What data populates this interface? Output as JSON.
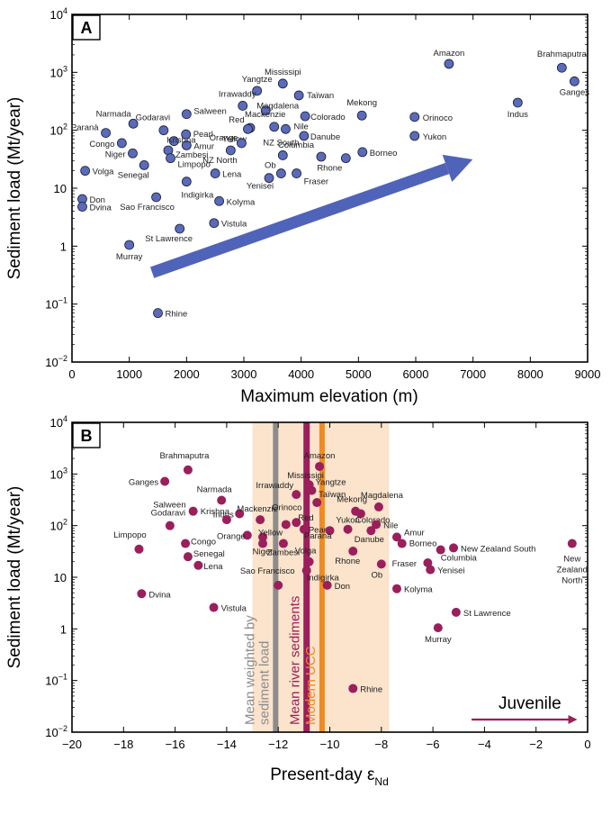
{
  "chart_data": [
    {
      "type": "scatter",
      "panel_label": "A",
      "xlabel": "Maximum elevation (m)",
      "ylabel": "Sediment load (Mt/year)",
      "xlim": [
        0,
        9000
      ],
      "ylim": [
        0.01,
        10000
      ],
      "yscale": "log",
      "xticks": [
        "0",
        "1000",
        "2000",
        "3000",
        "4000",
        "5000",
        "6000",
        "7000",
        "8000",
        "9000"
      ],
      "marker_color": "#5a6bb8",
      "arrow_color": "#4f63b8",
      "points": [
        {
          "name": "Amazon",
          "x": 6580,
          "y": 1400
        },
        {
          "name": "Brahmaputra",
          "x": 8550,
          "y": 1200
        },
        {
          "name": "Ganges",
          "x": 8770,
          "y": 700
        },
        {
          "name": "Indus",
          "x": 7780,
          "y": 300
        },
        {
          "name": "Mississipi",
          "x": 3680,
          "y": 640
        },
        {
          "name": "Yangtze",
          "x": 3230,
          "y": 480
        },
        {
          "name": "Taïwan",
          "x": 3960,
          "y": 400
        },
        {
          "name": "Irrawaddy",
          "x": 2980,
          "y": 265
        },
        {
          "name": "Magdalena",
          "x": 3380,
          "y": 220
        },
        {
          "name": "Red",
          "x": 3110,
          "y": 110
        },
        {
          "name": "Mackenzie",
          "x": 3530,
          "y": 115
        },
        {
          "name": "Nile",
          "x": 3730,
          "y": 105
        },
        {
          "name": "Colorado",
          "x": 4070,
          "y": 175
        },
        {
          "name": "Mekong",
          "x": 5060,
          "y": 180
        },
        {
          "name": "Orinoco",
          "x": 5980,
          "y": 170
        },
        {
          "name": "Yukon",
          "x": 5980,
          "y": 80
        },
        {
          "name": "Danube",
          "x": 4050,
          "y": 80
        },
        {
          "name": "Columbia",
          "x": 4350,
          "y": 35
        },
        {
          "name": "Borneo",
          "x": 5070,
          "y": 42
        },
        {
          "name": "Rhone",
          "x": 4780,
          "y": 33
        },
        {
          "name": "Ob",
          "x": 3650,
          "y": 18
        },
        {
          "name": "Fraser",
          "x": 3920,
          "y": 18
        },
        {
          "name": "NZ South",
          "x": 3680,
          "y": 37
        },
        {
          "name": "Yellow",
          "x": 3070,
          "y": 105
        },
        {
          "name": "Orange",
          "x": 2960,
          "y": 60
        },
        {
          "name": "NZ North",
          "x": 2770,
          "y": 45
        },
        {
          "name": "Yenisei",
          "x": 3440,
          "y": 15
        },
        {
          "name": "Lena",
          "x": 2500,
          "y": 18
        },
        {
          "name": "Kolyma",
          "x": 2570,
          "y": 6
        },
        {
          "name": "Vistula",
          "x": 2480,
          "y": 2.5
        },
        {
          "name": "St Lawrence",
          "x": 1880,
          "y": 2
        },
        {
          "name": "Salween",
          "x": 2000,
          "y": 190
        },
        {
          "name": "Pearl",
          "x": 1990,
          "y": 85
        },
        {
          "name": "Amur",
          "x": 2000,
          "y": 55
        },
        {
          "name": "Zambesi",
          "x": 1680,
          "y": 45
        },
        {
          "name": "Limpopo",
          "x": 1720,
          "y": 33
        },
        {
          "name": "Indigirka",
          "x": 2000,
          "y": 13
        },
        {
          "name": "Narmada",
          "x": 1070,
          "y": 130
        },
        {
          "name": "Godaravi",
          "x": 1600,
          "y": 100
        },
        {
          "name": "Krishna",
          "x": 1780,
          "y": 65
        },
        {
          "name": "Paranà",
          "x": 590,
          "y": 90
        },
        {
          "name": "Congo",
          "x": 870,
          "y": 60
        },
        {
          "name": "Niger",
          "x": 1060,
          "y": 40
        },
        {
          "name": "Senegal",
          "x": 1260,
          "y": 25
        },
        {
          "name": "Volga",
          "x": 230,
          "y": 20
        },
        {
          "name": "Sao Francisco",
          "x": 1470,
          "y": 7
        },
        {
          "name": "Don",
          "x": 180,
          "y": 6.5
        },
        {
          "name": "Dvina",
          "x": 180,
          "y": 4.8
        },
        {
          "name": "Murray",
          "x": 1000,
          "y": 1.05
        },
        {
          "name": "Rhine",
          "x": 1500,
          "y": 0.07
        }
      ]
    },
    {
      "type": "scatter",
      "panel_label": "B",
      "xlabel": "Present-day ε",
      "xlabel_sub": "Nd",
      "ylabel": "Sediment load (Mt/year)",
      "xlim": [
        -20,
        0
      ],
      "ylim": [
        0.01,
        10000
      ],
      "yscale": "log",
      "xticks": [
        "−20",
        "−18",
        "−16",
        "−14",
        "−12",
        "−10",
        "−8",
        "−6",
        "−4",
        "−2",
        "0"
      ],
      "marker_color": "#9a1f5c",
      "juvenile_label": "Juvenile",
      "juvenile_color": "#9a1f5c",
      "bands": [
        {
          "label": "Mean weighted by sediment load",
          "x": -12.1,
          "color": "#8c8c8c"
        },
        {
          "label": "Mean river sediments",
          "x": -10.9,
          "color": "#9a1f5c"
        },
        {
          "label": "Modern UCC",
          "x": -10.3,
          "color": "#f08a24"
        }
      ],
      "shade_range": [
        -13,
        -7.7
      ],
      "shade_color": "#fbe3cc",
      "points": [
        {
          "name": "Brahmaputra",
          "x": -15.5,
          "y": 1200
        },
        {
          "name": "Ganges",
          "x": -16.4,
          "y": 720
        },
        {
          "name": "Amazon",
          "x": -10.4,
          "y": 1400
        },
        {
          "name": "Mississipi",
          "x": -10.8,
          "y": 620
        },
        {
          "name": "Yangtze",
          "x": -10.7,
          "y": 480
        },
        {
          "name": "Irrawaddy",
          "x": -11.3,
          "y": 400
        },
        {
          "name": "Taïwan",
          "x": -10.5,
          "y": 280
        },
        {
          "name": "Narmada",
          "x": -14.2,
          "y": 310
        },
        {
          "name": "Salween",
          "x": -15.3,
          "y": 190
        },
        {
          "name": "Magdalena",
          "x": -8.1,
          "y": 230
        },
        {
          "name": "Mekong",
          "x": -9.0,
          "y": 190
        },
        {
          "name": "Colorado",
          "x": -8.8,
          "y": 170
        },
        {
          "name": "Indus",
          "x": -13.5,
          "y": 170
        },
        {
          "name": "Krishna",
          "x": -14.0,
          "y": 130
        },
        {
          "name": "Mackenzie",
          "x": -12.7,
          "y": 130
        },
        {
          "name": "Red",
          "x": -11.3,
          "y": 115
        },
        {
          "name": "Orinoco",
          "x": -11.7,
          "y": 105
        },
        {
          "name": "Nile",
          "x": -8.2,
          "y": 105
        },
        {
          "name": "Godaravi",
          "x": -16.2,
          "y": 100
        },
        {
          "name": "Yukon",
          "x": -9.3,
          "y": 85
        },
        {
          "name": "Pearl",
          "x": -11.0,
          "y": 85
        },
        {
          "name": "Paranà",
          "x": -10.0,
          "y": 80
        },
        {
          "name": "Danube",
          "x": -8.4,
          "y": 80
        },
        {
          "name": "Orange",
          "x": -13.2,
          "y": 65
        },
        {
          "name": "Yellow",
          "x": -12.6,
          "y": 60
        },
        {
          "name": "Amur",
          "x": -7.4,
          "y": 60
        },
        {
          "name": "Borneo",
          "x": -7.2,
          "y": 45
        },
        {
          "name": "Congo",
          "x": -15.6,
          "y": 45
        },
        {
          "name": "Niger",
          "x": -12.6,
          "y": 45
        },
        {
          "name": "Zambesi",
          "x": -11.8,
          "y": 45
        },
        {
          "name": "Limpopo",
          "x": -17.4,
          "y": 35
        },
        {
          "name": "Rhone",
          "x": -9.1,
          "y": 32
        },
        {
          "name": "New Zealand South",
          "x": -5.2,
          "y": 37
        },
        {
          "name": "Columbia",
          "x": -5.7,
          "y": 34
        },
        {
          "name": "New Zealand North",
          "x": -0.6,
          "y": 45
        },
        {
          "name": "Senegal",
          "x": -15.5,
          "y": 25
        },
        {
          "name": "Volga",
          "x": -10.8,
          "y": 20
        },
        {
          "name": "Fraser",
          "x": -6.2,
          "y": 19
        },
        {
          "name": "Ob",
          "x": -8.0,
          "y": 18
        },
        {
          "name": "Lena",
          "x": -15.1,
          "y": 17
        },
        {
          "name": "Yenisei",
          "x": -6.1,
          "y": 14
        },
        {
          "name": "Indigirka",
          "x": -10.9,
          "y": 13.5
        },
        {
          "name": "Sao Francisco",
          "x": -12.0,
          "y": 7
        },
        {
          "name": "Don",
          "x": -10.1,
          "y": 7
        },
        {
          "name": "Kolyma",
          "x": -7.4,
          "y": 6
        },
        {
          "name": "Dvina",
          "x": -17.3,
          "y": 4.8
        },
        {
          "name": "Vistula",
          "x": -14.5,
          "y": 2.6
        },
        {
          "name": "St Lawrence",
          "x": -5.1,
          "y": 2.1
        },
        {
          "name": "Murray",
          "x": -5.8,
          "y": 1.05
        },
        {
          "name": "Rhine",
          "x": -9.1,
          "y": 0.07
        }
      ]
    }
  ]
}
